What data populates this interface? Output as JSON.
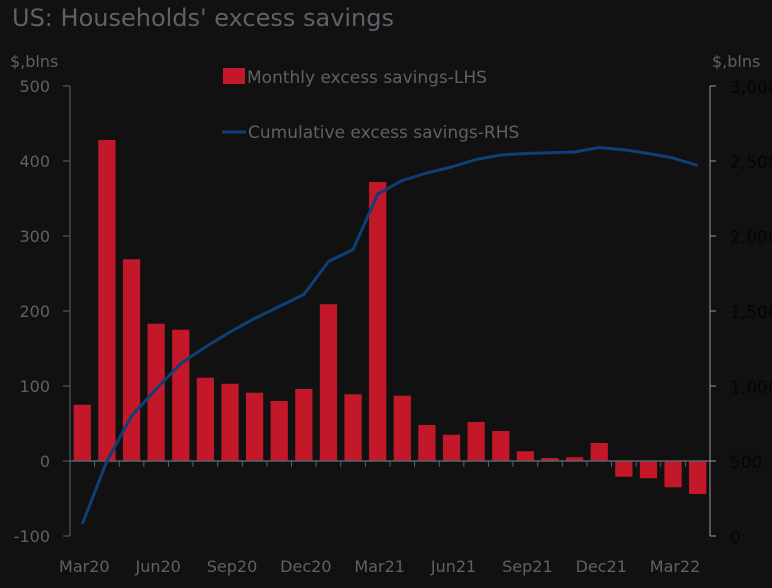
{
  "title": "US: Households' excess savings",
  "colors": {
    "bar": "#c3182a",
    "line": "#0f3f78",
    "axis": "#5c6268",
    "raxis_line": "#9a9a9a",
    "background": "#111111"
  },
  "chart_data": {
    "type": "bar+line",
    "title": "US: Households' excess savings",
    "ylabel_left": "$,blns",
    "ylabel_right": "$,blns",
    "ylim_left": [
      -100,
      500
    ],
    "ylim_right": [
      0,
      3000
    ],
    "yticks_left": [
      "500",
      "400",
      "300",
      "200",
      "100",
      "0",
      "-100"
    ],
    "yticks_left_values": [
      500,
      400,
      300,
      200,
      100,
      0,
      -100
    ],
    "yticks_right": [
      "3,000",
      "2,500",
      "2,000",
      "1,500",
      "1,000",
      "500",
      "0"
    ],
    "yticks_right_values": [
      3000,
      2500,
      2000,
      1500,
      1000,
      500,
      0
    ],
    "categories": [
      "Mar20",
      "Apr20",
      "May20",
      "Jun20",
      "Jul20",
      "Aug20",
      "Sep20",
      "Oct20",
      "Nov20",
      "Dec20",
      "Jan21",
      "Feb21",
      "Mar21",
      "Apr21",
      "May21",
      "Jun21",
      "Jul21",
      "Aug21",
      "Sep21",
      "Oct21",
      "Nov21",
      "Dec21",
      "Jan22",
      "Feb22",
      "Mar22",
      "Apr22"
    ],
    "xtick_labels": [
      {
        "label": "Mar20",
        "index": 0
      },
      {
        "label": "Jun20",
        "index": 3
      },
      {
        "label": "Sep20",
        "index": 6
      },
      {
        "label": "Dec20",
        "index": 9
      },
      {
        "label": "Mar21",
        "index": 12
      },
      {
        "label": "Jun21",
        "index": 15
      },
      {
        "label": "Sep21",
        "index": 18
      },
      {
        "label": "Dec21",
        "index": 21
      },
      {
        "label": "Mar22",
        "index": 24
      }
    ],
    "series": [
      {
        "name": "Monthly excess savings-LHS",
        "type": "bar",
        "axis": "left",
        "values": [
          75,
          428,
          269,
          183,
          175,
          111,
          103,
          91,
          80,
          96,
          209,
          89,
          372,
          87,
          48,
          35,
          52,
          40,
          13,
          4,
          5,
          24,
          -21,
          -23,
          -35,
          -44
        ]
      },
      {
        "name": "Cumulative excess savings-RHS",
        "type": "line",
        "axis": "right",
        "values": [
          80,
          500,
          800,
          980,
          1150,
          1260,
          1360,
          1450,
          1530,
          1610,
          1830,
          1910,
          2280,
          2370,
          2420,
          2460,
          2510,
          2540,
          2550,
          2555,
          2560,
          2590,
          2575,
          2550,
          2520,
          2470
        ]
      }
    ],
    "legend": [
      "Monthly excess savings-LHS",
      "Cumulative excess savings-RHS"
    ],
    "legend_position": "top-center",
    "grid": false
  }
}
